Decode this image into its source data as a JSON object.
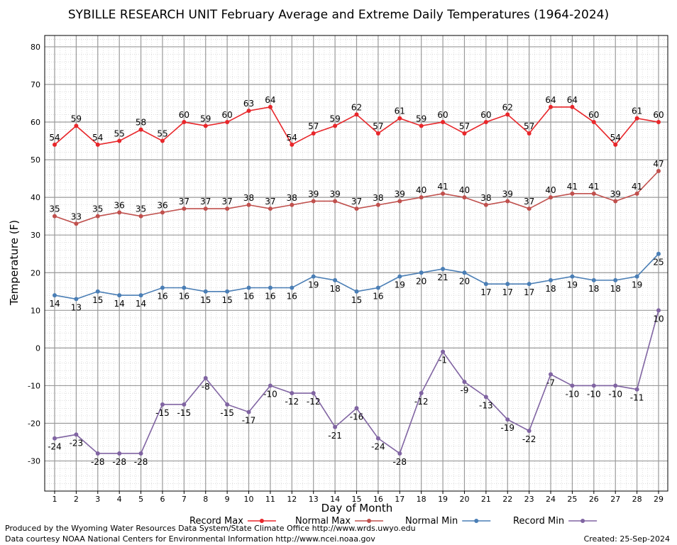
{
  "chart_data": {
    "type": "line",
    "title": "SYBILLE RESEARCH UNIT February Average and Extreme Daily Temperatures (1964-2024)",
    "xlabel": "Day of Month",
    "ylabel": "Temperature (F)",
    "ylim": [
      -38,
      83
    ],
    "yticks": [
      -30,
      -20,
      -10,
      0,
      10,
      20,
      30,
      40,
      50,
      60,
      70,
      80
    ],
    "x": [
      1,
      2,
      3,
      4,
      5,
      6,
      7,
      8,
      9,
      10,
      11,
      12,
      13,
      14,
      15,
      16,
      17,
      18,
      19,
      20,
      21,
      22,
      23,
      24,
      25,
      26,
      27,
      28,
      29
    ],
    "grid": true,
    "legend_position": "bottom",
    "series": [
      {
        "name": "Record Max",
        "color": "#e8262a",
        "label_pos": "above",
        "values": [
          54,
          59,
          54,
          55,
          58,
          55,
          60,
          59,
          60,
          63,
          64,
          54,
          57,
          59,
          62,
          57,
          61,
          59,
          60,
          57,
          60,
          62,
          57,
          64,
          64,
          60,
          54,
          61,
          60
        ]
      },
      {
        "name": "Normal Max",
        "color": "#c0504d",
        "label_pos": "above",
        "values": [
          35,
          33,
          35,
          36,
          35,
          36,
          37,
          37,
          37,
          38,
          37,
          38,
          39,
          39,
          37,
          38,
          39,
          40,
          41,
          40,
          38,
          39,
          37,
          40,
          41,
          41,
          39,
          41,
          47
        ]
      },
      {
        "name": "Normal Min",
        "color": "#4a7eb5",
        "label_pos": "below",
        "values": [
          14,
          13,
          15,
          14,
          14,
          16,
          16,
          15,
          15,
          16,
          16,
          16,
          19,
          18,
          15,
          16,
          19,
          20,
          21,
          20,
          17,
          17,
          17,
          18,
          19,
          18,
          18,
          19,
          25
        ]
      },
      {
        "name": "Record Min",
        "color": "#8064a2",
        "label_pos": "below",
        "values": [
          -24,
          -23,
          -28,
          -28,
          -28,
          -15,
          -15,
          -8,
          -15,
          -17,
          -10,
          -12,
          -12,
          -21,
          -16,
          -24,
          -28,
          -12,
          -1,
          -9,
          -13,
          -19,
          -22,
          -7,
          -10,
          -10,
          -10,
          -11,
          10
        ]
      }
    ]
  },
  "footer": {
    "produced_by": "Produced by the Wyoming Water Resources Data System/State Climate Office http://www.wrds.uwyo.edu",
    "data_courtesy": "Data courtesy NOAA National Centers for Environmental Information http://www.ncei.noaa.gov",
    "created": "Created:  25-Sep-2024"
  }
}
